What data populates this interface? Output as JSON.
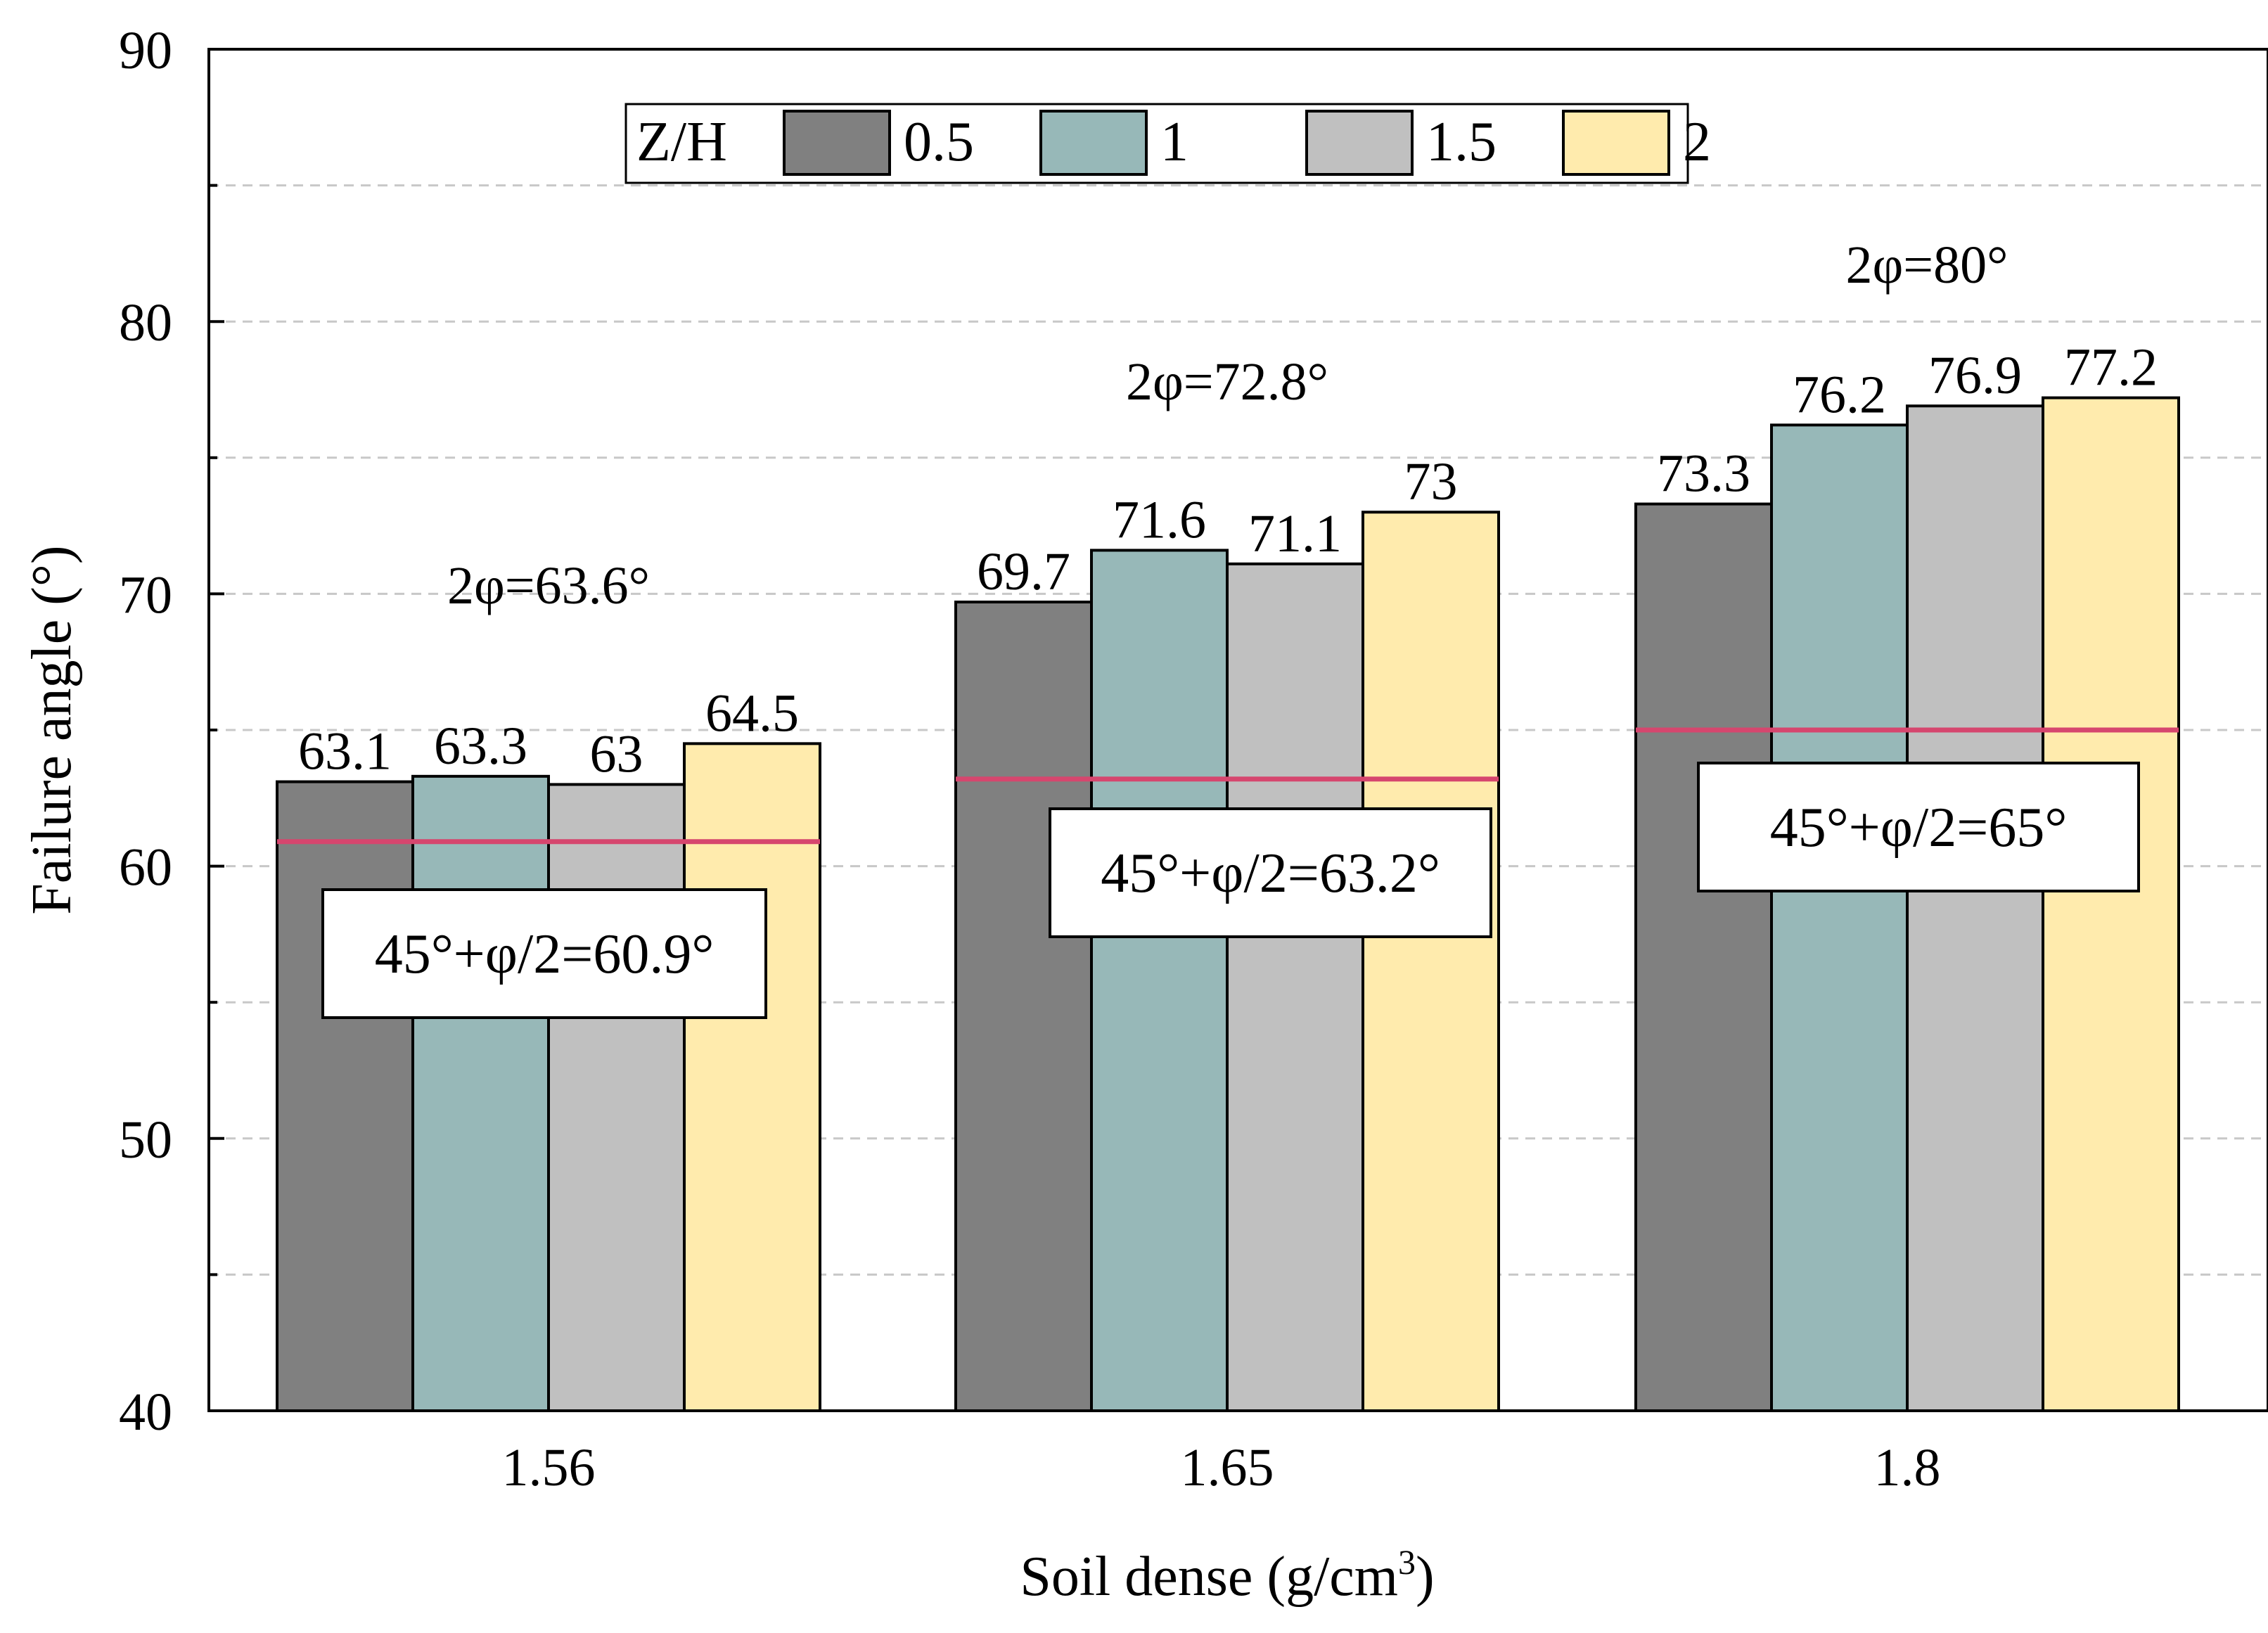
{
  "chart_data": {
    "type": "bar",
    "title": "",
    "xlabel": "Soil dense (g/cm",
    "xlabel_sup": "3",
    "xlabel_close": ")",
    "ylabel": "Failure angle (°)",
    "ylim": [
      40,
      90
    ],
    "y_ticks": [
      "40",
      "50",
      "60",
      "70",
      "80",
      "90"
    ],
    "y_tick_values": [
      40,
      50,
      60,
      70,
      80,
      90
    ],
    "y_minor_gridlines": [
      45,
      55,
      65,
      75,
      85
    ],
    "grid": "horizontal dashed",
    "categories": [
      "1.56",
      "1.65",
      "1.8"
    ],
    "legend": {
      "title": "Z/H",
      "position": "top-center"
    },
    "series": [
      {
        "name": "0.5",
        "color": "#808080",
        "values": [
          63.1,
          69.7,
          73.3
        ],
        "labels": [
          "63.1",
          "69.7",
          "73.3"
        ]
      },
      {
        "name": "1",
        "color": "#97B8B8",
        "values": [
          63.3,
          71.6,
          76.2
        ],
        "labels": [
          "63.3",
          "71.6",
          "76.2"
        ]
      },
      {
        "name": "1.5",
        "color": "#C0C0C0",
        "values": [
          63,
          71.1,
          76.9
        ],
        "labels": [
          "63",
          "71.1",
          "76.9"
        ]
      },
      {
        "name": "2",
        "color": "#FFEBAD",
        "values": [
          64.5,
          73,
          77.2
        ],
        "labels": [
          "64.5",
          "73",
          "77.2"
        ]
      }
    ],
    "reference_lines": [
      {
        "category": "1.56",
        "value": 60.9,
        "color": "#D6466E",
        "label": "45°+φ/2=60.9°"
      },
      {
        "category": "1.65",
        "value": 63.2,
        "color": "#D6466E",
        "label": "45°+φ/2=63.2°"
      },
      {
        "category": "1.8",
        "value": 65,
        "color": "#D6466E",
        "label": "45°+φ/2=65°"
      }
    ],
    "annotations": [
      {
        "category": "1.56",
        "text": "2φ=63.6°"
      },
      {
        "category": "1.65",
        "text": "2φ=72.8°"
      },
      {
        "category": "1.8",
        "text": "2φ=80°"
      }
    ]
  }
}
